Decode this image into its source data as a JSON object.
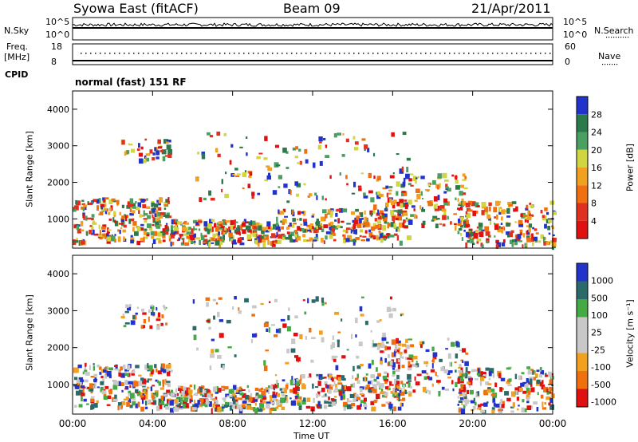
{
  "header": {
    "site": "Syowa East (fitACF)",
    "beam": "Beam 09",
    "date": "21/Apr/2011"
  },
  "top_panels": {
    "nsky_label": "N.Sky",
    "nsky_ticks": [
      "10^5",
      "10^0"
    ],
    "nsearch_label": "N.Search",
    "nsearch_ticks": [
      "10^5",
      "10^0"
    ],
    "freq_label_1": "Freq.",
    "freq_label_2": "[MHz]",
    "freq_ticks": [
      "18",
      "8"
    ],
    "nave_label": "Nave",
    "nave_ticks": [
      "60",
      "0"
    ],
    "cpid_label": "CPID",
    "cpid_value": "normal (fast) 151 RF"
  },
  "colors": {
    "power_scale": [
      "#2233cc",
      "#2b7a4b",
      "#4aa060",
      "#cfd640",
      "#f2a020",
      "#f07010",
      "#e03020",
      "#e01010"
    ],
    "velocity_scale": [
      "#2233cc",
      "#2b6a6b",
      "#44aa44",
      "#c8c8c8",
      "#c8c8c8",
      "#f2a020",
      "#f07010",
      "#e01010"
    ]
  },
  "chart_data": [
    {
      "type": "heatmap",
      "name": "power",
      "ylabel": "Slant Range [km]",
      "xlabel": "",
      "y_ticks": [
        "1000",
        "2000",
        "3000",
        "4000"
      ],
      "x_ticks": [
        "00:00",
        "04:00",
        "08:00",
        "12:00",
        "16:00",
        "20:00",
        "00:00"
      ],
      "ylim": [
        200,
        4500
      ],
      "colorbar": {
        "label": "Power [dB]",
        "ticks": [
          "28",
          "24",
          "20",
          "16",
          "12",
          "8",
          "4"
        ]
      }
    },
    {
      "type": "heatmap",
      "name": "velocity",
      "ylabel": "Slant Range [km]",
      "xlabel": "Time UT",
      "y_ticks": [
        "1000",
        "2000",
        "3000",
        "4000"
      ],
      "x_ticks": [
        "00:00",
        "04:00",
        "08:00",
        "12:00",
        "16:00",
        "20:00",
        "00:00"
      ],
      "ylim": [
        200,
        4500
      ],
      "colorbar": {
        "label": "Velocity [m s⁻¹]",
        "ticks": [
          "1000",
          "500",
          "100",
          "25",
          "-25",
          "-100",
          "-500",
          "-1000"
        ]
      }
    }
  ]
}
